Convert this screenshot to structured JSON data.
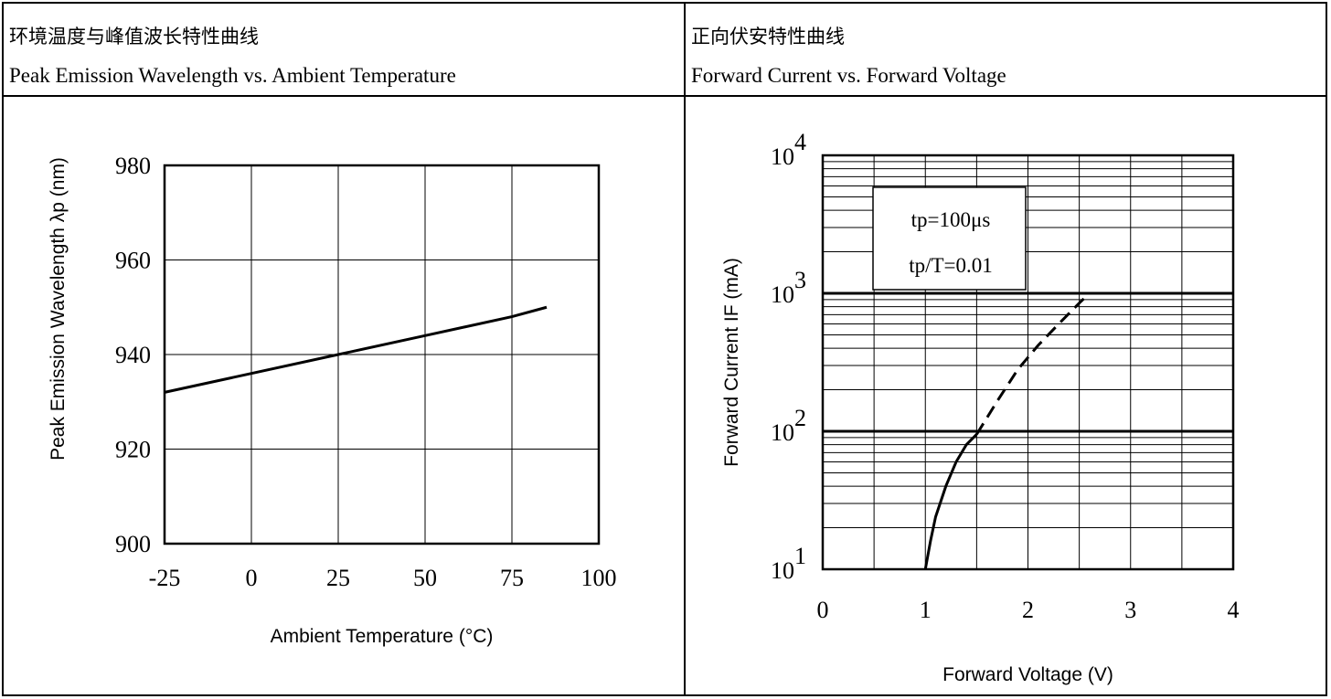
{
  "left": {
    "title_cn": "环境温度与峰值波长特性曲线",
    "title_en": "Peak Emission Wavelength vs. Ambient Temperature"
  },
  "right": {
    "title_cn": "正向伏安特性曲线",
    "title_en": "Forward Current vs. Forward Voltage",
    "note_line1": "tp=100μs",
    "note_line2": "tp/T=0.01"
  },
  "chart_data": [
    {
      "type": "line",
      "title": "Peak Emission Wavelength vs. Ambient Temperature",
      "xlabel": "Ambient Temperature (°C)",
      "ylabel": "Peak Emission Wavelength λp (nm)",
      "xlim": [
        -25,
        100
      ],
      "ylim": [
        900,
        980
      ],
      "x_ticks": [
        "-25",
        "0",
        "25",
        "50",
        "75",
        "100"
      ],
      "y_ticks": [
        "900",
        "920",
        "940",
        "960",
        "980"
      ],
      "grid": true,
      "series": [
        {
          "x": [
            -25,
            0,
            25,
            50,
            75,
            85
          ],
          "y": [
            932,
            936,
            940,
            944,
            948,
            950
          ],
          "style": "solid"
        }
      ]
    },
    {
      "type": "line",
      "title": "Forward Current vs. Forward Voltage",
      "xlabel": "Forward Voltage (V)",
      "ylabel": "Forward Current IF (mA)",
      "xlim": [
        0,
        4
      ],
      "ylim": [
        10,
        10000
      ],
      "y_scale": "log",
      "x_ticks": [
        "0",
        "1",
        "2",
        "3",
        "4"
      ],
      "y_ticks": [
        "10^1",
        "10^2",
        "10^3",
        "10^4"
      ],
      "grid": true,
      "annotations": [
        "tp=100μs",
        "tp/T=0.01"
      ],
      "series": [
        {
          "style": "solid",
          "x": [
            1.0,
            1.05,
            1.1,
            1.2,
            1.3,
            1.4,
            1.5
          ],
          "y": [
            10,
            16,
            24,
            40,
            60,
            80,
            95
          ]
        },
        {
          "style": "dashed",
          "x": [
            1.5,
            1.7,
            1.9,
            2.1,
            2.3,
            2.5,
            2.6
          ],
          "y": [
            95,
            165,
            280,
            420,
            600,
            850,
            1000
          ]
        }
      ]
    }
  ]
}
